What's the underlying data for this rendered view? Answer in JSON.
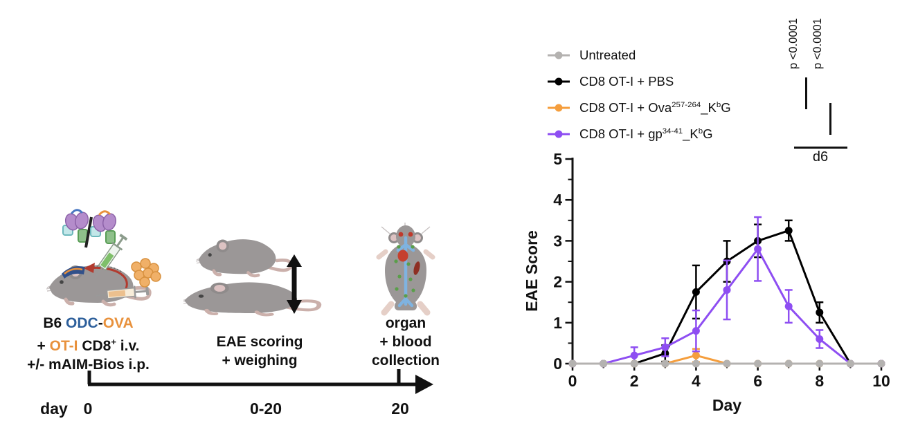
{
  "colors": {
    "black": "#111111",
    "blue": "#2d5f9b",
    "orange_text": "#e8913c",
    "gray_series": "#b4b2b0",
    "black_series": "#000000",
    "orange_series": "#f59e3d",
    "purple_series": "#8e4ef2"
  },
  "schematic": {
    "step1_caption": [
      [
        {
          "t": "B6 ",
          "c": "black"
        },
        {
          "t": "ODC",
          "c": "blue"
        },
        {
          "t": "-",
          "c": "black"
        },
        {
          "t": "OVA",
          "c": "orange_text"
        }
      ],
      [
        {
          "t": "+ ",
          "c": "black"
        },
        {
          "t": "OT-I",
          "c": "orange_text"
        },
        {
          "t": " CD8",
          "c": "black"
        },
        {
          "t": "+",
          "c": "black",
          "sup": true
        },
        {
          "t": " i.v.",
          "c": "black"
        }
      ],
      [
        {
          "t": "+/- mAIM-Bios i.p.",
          "c": "black"
        }
      ]
    ],
    "step2_caption": [
      "EAE scoring",
      "+ weighing"
    ],
    "step3_caption": [
      "organ",
      "+ blood",
      "collection"
    ],
    "timeline": {
      "axis_label": "day",
      "tick_start": "0",
      "tick_mid": "0-20",
      "tick_end": "20"
    }
  },
  "significance": {
    "p_left": "p <0.0001",
    "p_right": "p <0.0001",
    "bracket_label": "d6"
  },
  "chart_data": {
    "type": "line",
    "title": "",
    "xlabel": "Day",
    "ylabel": "EAE Score",
    "xlim": [
      0,
      10
    ],
    "ylim": [
      0,
      5
    ],
    "x_major_ticks": [
      0,
      2,
      4,
      6,
      8,
      10
    ],
    "x_minor_ticks": [
      1,
      3,
      5,
      7,
      9
    ],
    "y_major_ticks": [
      0,
      1,
      2,
      3,
      4,
      5
    ],
    "y_minor_ticks": [
      0.5,
      1.5,
      2.5,
      3.5,
      4.5
    ],
    "grid": false,
    "legend_position": "top-left",
    "x": [
      0,
      1,
      2,
      3,
      4,
      5,
      6,
      7,
      8,
      9,
      10
    ],
    "series": [
      {
        "name": "Untreated",
        "label_parts": [
          {
            "t": "Untreated"
          }
        ],
        "color": "#b4b2b0",
        "values": [
          0,
          0,
          0,
          0,
          0,
          0,
          0,
          0,
          0,
          0,
          0
        ],
        "errors": [
          0,
          0,
          0,
          0,
          0,
          0,
          0,
          0,
          0,
          0,
          0
        ]
      },
      {
        "name": "CD8 OT-I + PBS",
        "label_parts": [
          {
            "t": "CD8 OT-I + PBS"
          }
        ],
        "color": "#000000",
        "values": [
          0,
          0,
          0,
          0.25,
          1.75,
          2.5,
          3,
          3.25,
          1.25,
          0,
          0
        ],
        "errors": [
          0,
          0,
          0,
          0.2,
          0.65,
          0.5,
          0.4,
          0.25,
          0.25,
          0,
          0
        ]
      },
      {
        "name": "CD8 OT-I + Ova257-264_KbG",
        "label_parts": [
          {
            "t": "CD8 OT-I + Ova"
          },
          {
            "t": "257-264",
            "sup": true
          },
          {
            "t": "_K"
          },
          {
            "t": "b",
            "sup": true
          },
          {
            "t": "G"
          }
        ],
        "color": "#f59e3d",
        "values": [
          0,
          0,
          0,
          0,
          0.2,
          0,
          0,
          0,
          0,
          0,
          0
        ],
        "errors": [
          0,
          0,
          0,
          0,
          0.16,
          0,
          0,
          0,
          0,
          0,
          0
        ]
      },
      {
        "name": "CD8 OT-I + gp34-41_KbG",
        "label_parts": [
          {
            "t": "CD8 OT-I + gp"
          },
          {
            "t": "34-41",
            "sup": true
          },
          {
            "t": "_K"
          },
          {
            "t": "b",
            "sup": true
          },
          {
            "t": "G"
          }
        ],
        "color": "#8e4ef2",
        "values": [
          0,
          0,
          0.2,
          0.4,
          0.8,
          1.8,
          2.8,
          1.4,
          0.6,
          0,
          0
        ],
        "errors": [
          0,
          0,
          0.2,
          0.22,
          0.5,
          0.72,
          0.78,
          0.4,
          0.22,
          0,
          0
        ]
      }
    ]
  }
}
